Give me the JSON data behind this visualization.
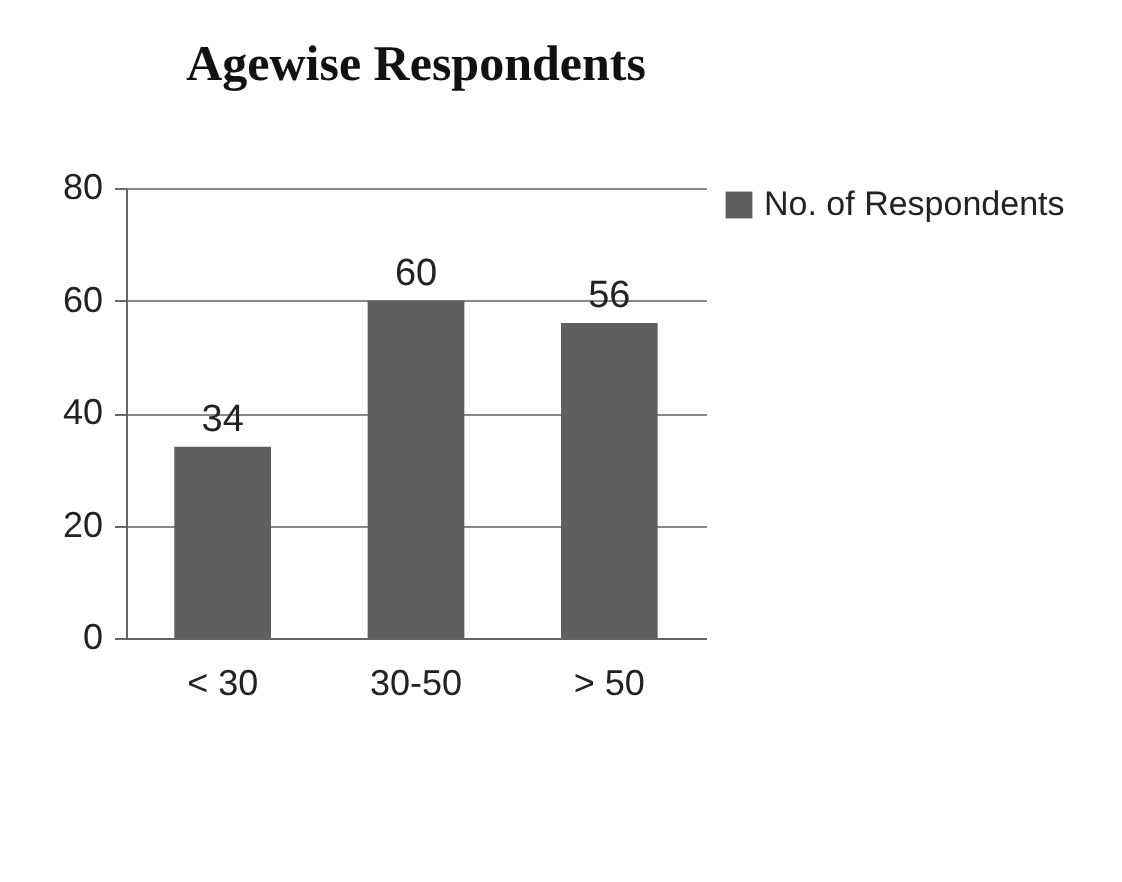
{
  "chart_data": {
    "type": "bar",
    "title": "Agewise Respondents",
    "categories": [
      "< 30",
      "30-50",
      "> 50"
    ],
    "series": [
      {
        "name": "No. of Respondents",
        "color": "#5f5f5f",
        "values": [
          34,
          60,
          56
        ]
      }
    ],
    "ylim": [
      0,
      80
    ],
    "yticks": [
      0,
      20,
      40,
      60,
      80
    ],
    "grid": "y",
    "legend": "right",
    "data_labels": true
  }
}
